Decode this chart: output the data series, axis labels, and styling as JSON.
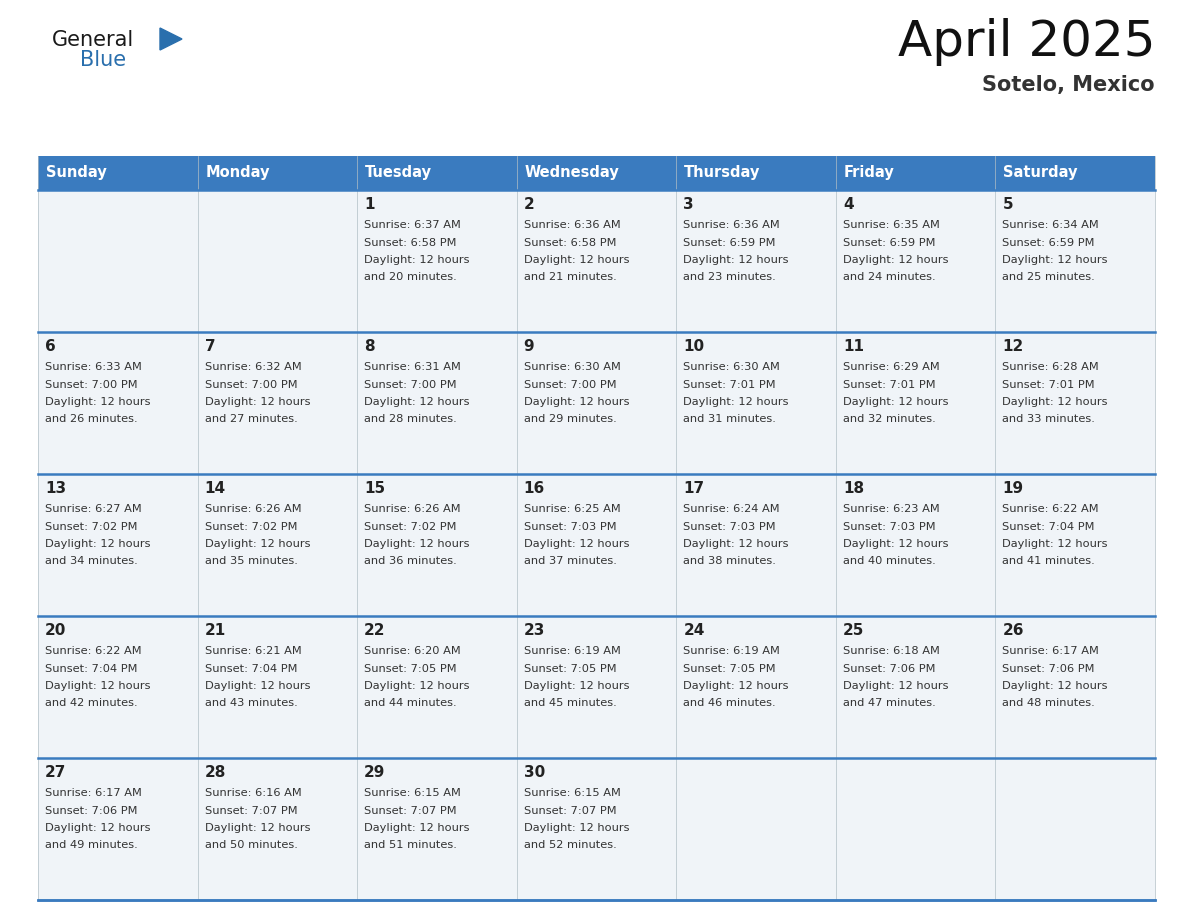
{
  "title": "April 2025",
  "subtitle": "Sotelo, Mexico",
  "header_bg_color": "#3a7bbf",
  "header_text_color": "#ffffff",
  "cell_bg_color": "#f0f4f8",
  "day_number_color": "#222222",
  "day_text_color": "#333333",
  "border_color": "#3a7bbf",
  "days_of_week": [
    "Sunday",
    "Monday",
    "Tuesday",
    "Wednesday",
    "Thursday",
    "Friday",
    "Saturday"
  ],
  "weeks": [
    [
      {
        "day": "",
        "sunrise": "",
        "sunset": "",
        "daylight": ""
      },
      {
        "day": "",
        "sunrise": "",
        "sunset": "",
        "daylight": ""
      },
      {
        "day": "1",
        "sunrise": "6:37 AM",
        "sunset": "6:58 PM",
        "daylight": "12 hours and 20 minutes."
      },
      {
        "day": "2",
        "sunrise": "6:36 AM",
        "sunset": "6:58 PM",
        "daylight": "12 hours and 21 minutes."
      },
      {
        "day": "3",
        "sunrise": "6:36 AM",
        "sunset": "6:59 PM",
        "daylight": "12 hours and 23 minutes."
      },
      {
        "day": "4",
        "sunrise": "6:35 AM",
        "sunset": "6:59 PM",
        "daylight": "12 hours and 24 minutes."
      },
      {
        "day": "5",
        "sunrise": "6:34 AM",
        "sunset": "6:59 PM",
        "daylight": "12 hours and 25 minutes."
      }
    ],
    [
      {
        "day": "6",
        "sunrise": "6:33 AM",
        "sunset": "7:00 PM",
        "daylight": "12 hours and 26 minutes."
      },
      {
        "day": "7",
        "sunrise": "6:32 AM",
        "sunset": "7:00 PM",
        "daylight": "12 hours and 27 minutes."
      },
      {
        "day": "8",
        "sunrise": "6:31 AM",
        "sunset": "7:00 PM",
        "daylight": "12 hours and 28 minutes."
      },
      {
        "day": "9",
        "sunrise": "6:30 AM",
        "sunset": "7:00 PM",
        "daylight": "12 hours and 29 minutes."
      },
      {
        "day": "10",
        "sunrise": "6:30 AM",
        "sunset": "7:01 PM",
        "daylight": "12 hours and 31 minutes."
      },
      {
        "day": "11",
        "sunrise": "6:29 AM",
        "sunset": "7:01 PM",
        "daylight": "12 hours and 32 minutes."
      },
      {
        "day": "12",
        "sunrise": "6:28 AM",
        "sunset": "7:01 PM",
        "daylight": "12 hours and 33 minutes."
      }
    ],
    [
      {
        "day": "13",
        "sunrise": "6:27 AM",
        "sunset": "7:02 PM",
        "daylight": "12 hours and 34 minutes."
      },
      {
        "day": "14",
        "sunrise": "6:26 AM",
        "sunset": "7:02 PM",
        "daylight": "12 hours and 35 minutes."
      },
      {
        "day": "15",
        "sunrise": "6:26 AM",
        "sunset": "7:02 PM",
        "daylight": "12 hours and 36 minutes."
      },
      {
        "day": "16",
        "sunrise": "6:25 AM",
        "sunset": "7:03 PM",
        "daylight": "12 hours and 37 minutes."
      },
      {
        "day": "17",
        "sunrise": "6:24 AM",
        "sunset": "7:03 PM",
        "daylight": "12 hours and 38 minutes."
      },
      {
        "day": "18",
        "sunrise": "6:23 AM",
        "sunset": "7:03 PM",
        "daylight": "12 hours and 40 minutes."
      },
      {
        "day": "19",
        "sunrise": "6:22 AM",
        "sunset": "7:04 PM",
        "daylight": "12 hours and 41 minutes."
      }
    ],
    [
      {
        "day": "20",
        "sunrise": "6:22 AM",
        "sunset": "7:04 PM",
        "daylight": "12 hours and 42 minutes."
      },
      {
        "day": "21",
        "sunrise": "6:21 AM",
        "sunset": "7:04 PM",
        "daylight": "12 hours and 43 minutes."
      },
      {
        "day": "22",
        "sunrise": "6:20 AM",
        "sunset": "7:05 PM",
        "daylight": "12 hours and 44 minutes."
      },
      {
        "day": "23",
        "sunrise": "6:19 AM",
        "sunset": "7:05 PM",
        "daylight": "12 hours and 45 minutes."
      },
      {
        "day": "24",
        "sunrise": "6:19 AM",
        "sunset": "7:05 PM",
        "daylight": "12 hours and 46 minutes."
      },
      {
        "day": "25",
        "sunrise": "6:18 AM",
        "sunset": "7:06 PM",
        "daylight": "12 hours and 47 minutes."
      },
      {
        "day": "26",
        "sunrise": "6:17 AM",
        "sunset": "7:06 PM",
        "daylight": "12 hours and 48 minutes."
      }
    ],
    [
      {
        "day": "27",
        "sunrise": "6:17 AM",
        "sunset": "7:06 PM",
        "daylight": "12 hours and 49 minutes."
      },
      {
        "day": "28",
        "sunrise": "6:16 AM",
        "sunset": "7:07 PM",
        "daylight": "12 hours and 50 minutes."
      },
      {
        "day": "29",
        "sunrise": "6:15 AM",
        "sunset": "7:07 PM",
        "daylight": "12 hours and 51 minutes."
      },
      {
        "day": "30",
        "sunrise": "6:15 AM",
        "sunset": "7:07 PM",
        "daylight": "12 hours and 52 minutes."
      },
      {
        "day": "",
        "sunrise": "",
        "sunset": "",
        "daylight": ""
      },
      {
        "day": "",
        "sunrise": "",
        "sunset": "",
        "daylight": ""
      },
      {
        "day": "",
        "sunrise": "",
        "sunset": "",
        "daylight": ""
      }
    ]
  ],
  "logo_general_color": "#1a1a1a",
  "logo_blue_color": "#2a6fad",
  "logo_triangle_color": "#2a6fad",
  "title_color": "#111111",
  "subtitle_color": "#333333"
}
